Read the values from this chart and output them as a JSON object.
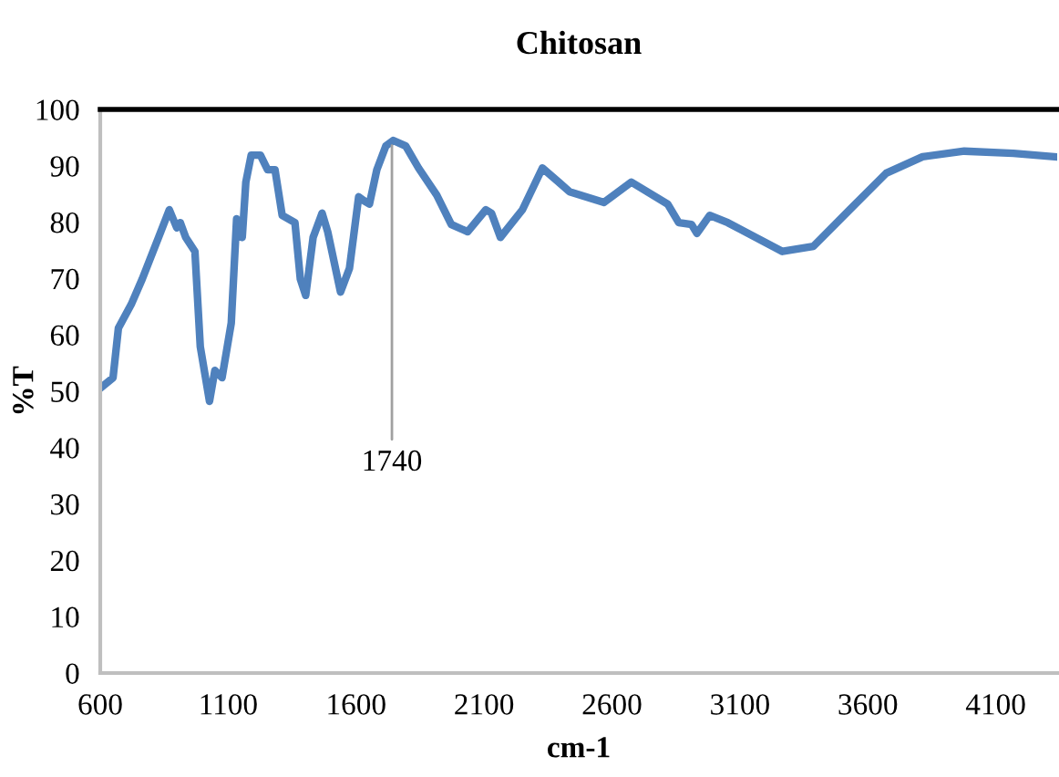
{
  "chart_data": {
    "type": "line",
    "title": "Chitosan",
    "xlabel": "cm-1",
    "ylabel": "%T",
    "x": [
      607,
      650,
      671,
      721,
      764,
      828,
      870,
      899,
      913,
      934,
      970,
      991,
      1027,
      1048,
      1076,
      1112,
      1133,
      1155,
      1169,
      1190,
      1226,
      1254,
      1283,
      1311,
      1361,
      1382,
      1403,
      1432,
      1467,
      1489,
      1539,
      1574,
      1610,
      1631,
      1652,
      1681,
      1716,
      1745,
      1794,
      1844,
      1915,
      1972,
      2036,
      2107,
      2129,
      2164,
      2250,
      2328,
      2392,
      2434,
      2569,
      2676,
      2818,
      2861,
      2911,
      2932,
      2982,
      3053,
      3266,
      3387,
      3529,
      3672,
      3814,
      3977,
      4169,
      4333
    ],
    "series": [
      {
        "color": "#4f81bd",
        "values": [
          50.8,
          52.4,
          61.2,
          65.4,
          69.9,
          77.3,
          82.2,
          79.0,
          79.9,
          77.3,
          74.8,
          57.9,
          48.2,
          53.7,
          52.4,
          62.1,
          80.6,
          77.3,
          87.1,
          91.9,
          91.9,
          89.3,
          89.3,
          81.2,
          79.9,
          69.9,
          67.0,
          77.3,
          81.6,
          78.3,
          67.6,
          71.8,
          84.5,
          83.8,
          83.2,
          89.3,
          93.5,
          94.5,
          93.5,
          89.6,
          84.8,
          79.6,
          78.3,
          82.2,
          81.6,
          77.3,
          82.2,
          89.6,
          87.1,
          85.4,
          83.5,
          87.1,
          83.2,
          79.9,
          79.6,
          78.0,
          81.2,
          79.9,
          74.8,
          75.7,
          82.2,
          88.7,
          91.6,
          92.6,
          92.2,
          91.6
        ]
      }
    ],
    "annotations": [
      {
        "text": "1740",
        "x": 1740,
        "y": 94.5
      }
    ],
    "xlim": [
      600,
      4340
    ],
    "xticks": [
      600,
      1100,
      1600,
      2100,
      2600,
      3100,
      3600,
      4100
    ],
    "ylim": [
      0,
      100
    ],
    "yticks": [
      0,
      10,
      20,
      30,
      40,
      50,
      60,
      70,
      80,
      90,
      100
    ],
    "grid": false,
    "marker": "none",
    "line_style": "solid"
  }
}
